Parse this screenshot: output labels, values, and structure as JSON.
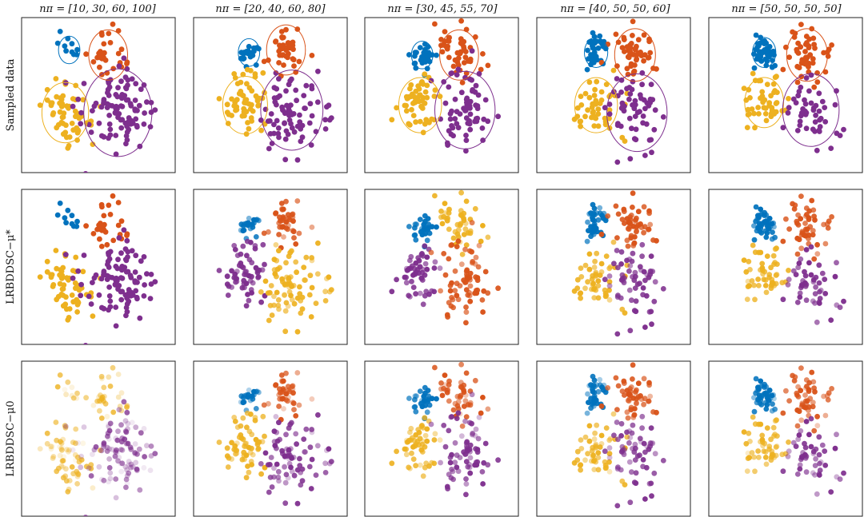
{
  "chart_data": {
    "type": "scatter",
    "layout": "grid",
    "column_titles": [
      "nπ = [10, 30, 60, 100]",
      "nπ = [20, 40, 60, 80]",
      "nπ = [30, 45, 55, 70]",
      "nπ = [40, 50, 50, 60]",
      "nπ = [50, 50, 50, 50]"
    ],
    "row_labels": [
      "Sampled data",
      "LRBDDSC−μ*",
      "LRBDDSC−μ0"
    ],
    "colors": {
      "blue": "#0072BD",
      "orange": "#D95319",
      "yellow": "#EDB120",
      "purple": "#7E2F8E"
    },
    "columns": [
      {
        "clusters": [
          {
            "color": "blue",
            "count": 10,
            "center": [
              -2.0,
              1.9
            ],
            "spread": 0.35,
            "radius": 0.55
          },
          {
            "color": "orange",
            "count": 30,
            "center": [
              0.0,
              1.7
            ],
            "spread": 0.5,
            "radius": 1.0
          },
          {
            "color": "yellow",
            "count": 60,
            "center": [
              -2.2,
              -0.6
            ],
            "spread": 0.65,
            "radius": 1.2
          },
          {
            "color": "purple",
            "count": 100,
            "center": [
              0.5,
              -0.6
            ],
            "spread": 0.85,
            "radius": 1.75
          }
        ]
      },
      {
        "clusters": [
          {
            "color": "blue",
            "count": 20,
            "center": [
              -1.6,
              1.8
            ],
            "spread": 0.3,
            "radius": 0.55
          },
          {
            "color": "orange",
            "count": 40,
            "center": [
              0.3,
              1.9
            ],
            "spread": 0.5,
            "radius": 1.0
          },
          {
            "color": "yellow",
            "count": 60,
            "center": [
              -1.8,
              -0.3
            ],
            "spread": 0.6,
            "radius": 1.15
          },
          {
            "color": "purple",
            "count": 80,
            "center": [
              0.6,
              -0.5
            ],
            "spread": 0.8,
            "radius": 1.6
          }
        ]
      },
      {
        "clusters": [
          {
            "color": "blue",
            "count": 30,
            "center": [
              -1.5,
              1.7
            ],
            "spread": 0.28,
            "radius": 0.55
          },
          {
            "color": "orange",
            "count": 45,
            "center": [
              0.4,
              1.7
            ],
            "spread": 0.5,
            "radius": 1.0
          },
          {
            "color": "yellow",
            "count": 55,
            "center": [
              -1.6,
              -0.3
            ],
            "spread": 0.6,
            "radius": 1.1
          },
          {
            "color": "purple",
            "count": 70,
            "center": [
              0.7,
              -0.5
            ],
            "spread": 0.8,
            "radius": 1.55
          }
        ]
      },
      {
        "clusters": [
          {
            "color": "blue",
            "count": 40,
            "center": [
              -1.4,
              1.8
            ],
            "spread": 0.3,
            "radius": 0.6
          },
          {
            "color": "orange",
            "count": 50,
            "center": [
              0.6,
              1.7
            ],
            "spread": 0.55,
            "radius": 1.05
          },
          {
            "color": "yellow",
            "count": 50,
            "center": [
              -1.4,
              -0.3
            ],
            "spread": 0.6,
            "radius": 1.1
          },
          {
            "color": "purple",
            "count": 60,
            "center": [
              0.7,
              -0.6
            ],
            "spread": 0.8,
            "radius": 1.55
          }
        ]
      },
      {
        "clusters": [
          {
            "color": "blue",
            "count": 50,
            "center": [
              -1.6,
              1.8
            ],
            "spread": 0.3,
            "radius": 0.6
          },
          {
            "color": "orange",
            "count": 50,
            "center": [
              0.6,
              1.7
            ],
            "spread": 0.55,
            "radius": 1.05
          },
          {
            "color": "yellow",
            "count": 50,
            "center": [
              -1.6,
              -0.2
            ],
            "spread": 0.55,
            "radius": 1.0
          },
          {
            "color": "purple",
            "count": 50,
            "center": [
              0.8,
              -0.5
            ],
            "spread": 0.75,
            "radius": 1.45
          }
        ]
      }
    ],
    "predicted_colors": {
      "row2": [
        {
          "blue": "blue",
          "orange": "orange",
          "yellow": "yellow",
          "purple": "purple"
        },
        {
          "blue": "blue",
          "orange": "orange",
          "yellow": "purple",
          "purple": "yellow"
        },
        {
          "blue": "blue",
          "orange": "yellow",
          "yellow": "purple",
          "purple": "orange"
        },
        {
          "blue": "blue",
          "orange": "orange",
          "yellow": "yellow",
          "purple": "purple"
        },
        {
          "blue": "blue",
          "orange": "orange",
          "yellow": "yellow",
          "purple": "purple"
        }
      ],
      "row3": [
        {
          "blue": "yellow",
          "orange": "yellow",
          "yellow": "yellow",
          "purple": "purple"
        },
        {
          "blue": "blue",
          "orange": "orange",
          "yellow": "yellow",
          "purple": "purple"
        },
        {
          "blue": "blue",
          "orange": "orange",
          "yellow": "yellow",
          "purple": "purple"
        },
        {
          "blue": "blue",
          "orange": "orange",
          "yellow": "yellow",
          "purple": "purple"
        },
        {
          "blue": "blue",
          "orange": "orange",
          "yellow": "yellow",
          "purple": "purple"
        }
      ]
    },
    "xlim": [
      -4.2,
      3.2
    ],
    "ylim": [
      -2.8,
      3.0
    ],
    "axes": "off",
    "grid": false
  }
}
